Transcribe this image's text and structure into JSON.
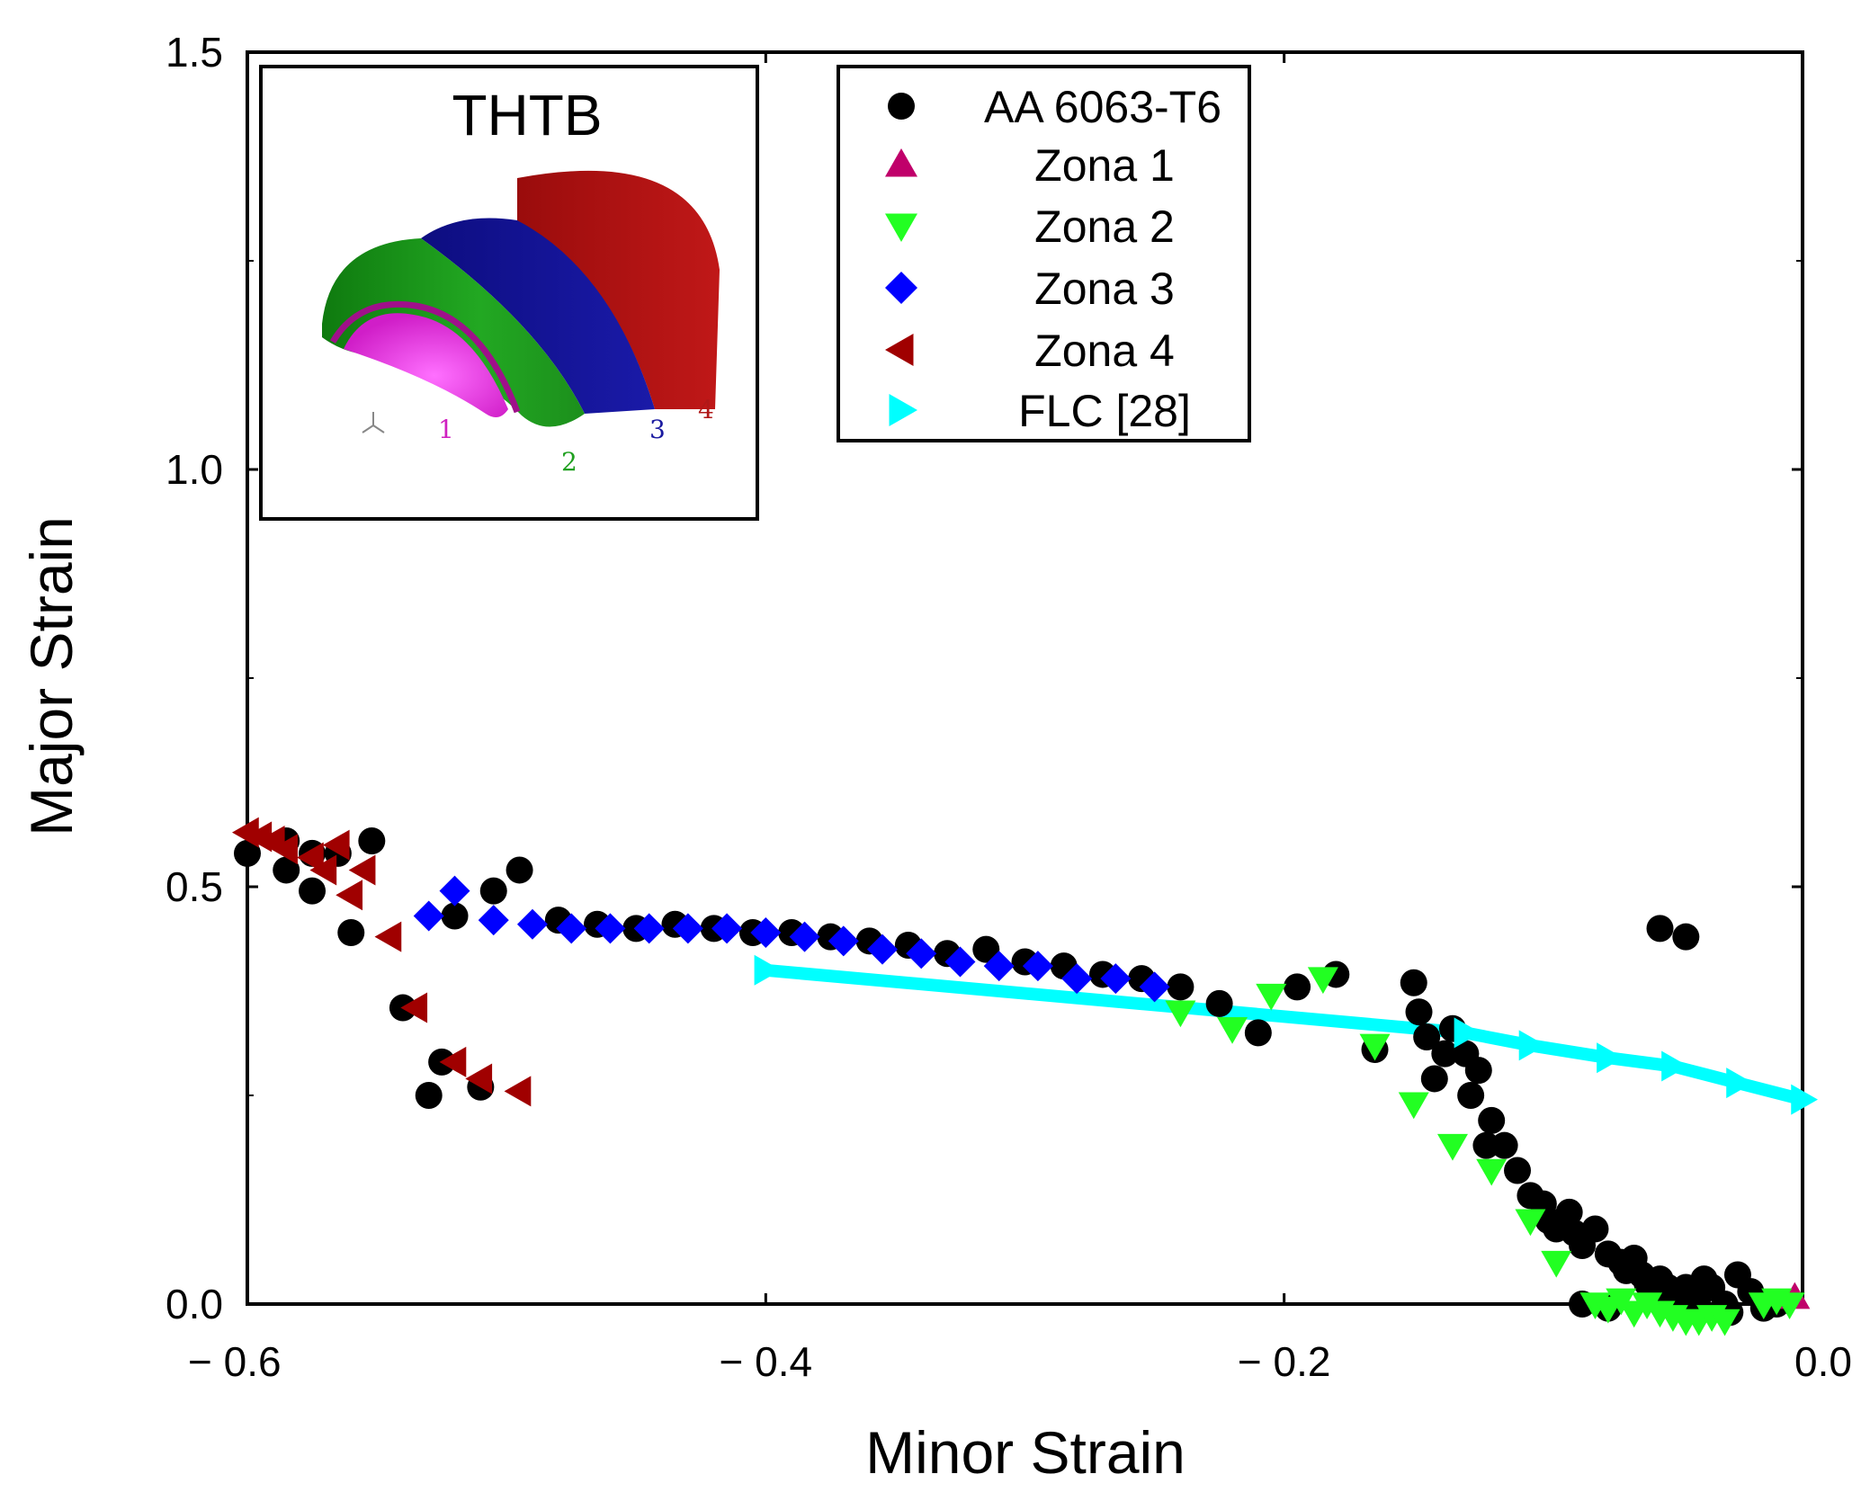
{
  "chart_data": {
    "type": "scatter",
    "title": "",
    "xlabel": "Minor Strain",
    "ylabel": "Major Strain",
    "xlim": [
      -0.6,
      0.0
    ],
    "ylim": [
      0.0,
      1.5
    ],
    "xticks": [
      -0.6,
      -0.4,
      -0.2,
      0.0
    ],
    "xtick_labels": [
      "− 0.6",
      "− 0.4",
      "− 0.2",
      "0.0"
    ],
    "yticks": [
      0.0,
      0.5,
      1.0,
      1.5
    ],
    "ytick_labels": [
      "0.0",
      "0.5",
      "1.0",
      "1.5"
    ],
    "grid": false,
    "legend_position": "top-center",
    "series": [
      {
        "name": "AA 6063-T6",
        "marker": "circle",
        "color": "#000000",
        "points": [
          [
            -0.6,
            0.54
          ],
          [
            -0.585,
            0.555
          ],
          [
            -0.585,
            0.52
          ],
          [
            -0.575,
            0.54
          ],
          [
            -0.575,
            0.495
          ],
          [
            -0.565,
            0.54
          ],
          [
            -0.56,
            0.445
          ],
          [
            -0.552,
            0.555
          ],
          [
            -0.54,
            0.355
          ],
          [
            -0.53,
            0.25
          ],
          [
            -0.525,
            0.29
          ],
          [
            -0.52,
            0.465
          ],
          [
            -0.51,
            0.26
          ],
          [
            -0.505,
            0.495
          ],
          [
            -0.495,
            0.52
          ],
          [
            -0.48,
            0.46
          ],
          [
            -0.465,
            0.455
          ],
          [
            -0.45,
            0.45
          ],
          [
            -0.435,
            0.455
          ],
          [
            -0.42,
            0.45
          ],
          [
            -0.405,
            0.445
          ],
          [
            -0.39,
            0.445
          ],
          [
            -0.375,
            0.44
          ],
          [
            -0.36,
            0.435
          ],
          [
            -0.345,
            0.43
          ],
          [
            -0.33,
            0.42
          ],
          [
            -0.315,
            0.425
          ],
          [
            -0.3,
            0.41
          ],
          [
            -0.285,
            0.405
          ],
          [
            -0.27,
            0.395
          ],
          [
            -0.255,
            0.39
          ],
          [
            -0.24,
            0.38
          ],
          [
            -0.225,
            0.36
          ],
          [
            -0.21,
            0.325
          ],
          [
            -0.195,
            0.38
          ],
          [
            -0.18,
            0.395
          ],
          [
            -0.165,
            0.305
          ],
          [
            -0.15,
            0.385
          ],
          [
            -0.148,
            0.35
          ],
          [
            -0.145,
            0.32
          ],
          [
            -0.142,
            0.27
          ],
          [
            -0.138,
            0.3
          ],
          [
            -0.135,
            0.33
          ],
          [
            -0.13,
            0.3
          ],
          [
            -0.128,
            0.25
          ],
          [
            -0.125,
            0.28
          ],
          [
            -0.122,
            0.19
          ],
          [
            -0.12,
            0.22
          ],
          [
            -0.115,
            0.19
          ],
          [
            -0.11,
            0.16
          ],
          [
            -0.105,
            0.13
          ],
          [
            -0.1,
            0.12
          ],
          [
            -0.098,
            0.1
          ],
          [
            -0.095,
            0.09
          ],
          [
            -0.09,
            0.11
          ],
          [
            -0.088,
            0.085
          ],
          [
            -0.085,
            0.07
          ],
          [
            -0.08,
            0.09
          ],
          [
            -0.075,
            0.06
          ],
          [
            -0.07,
            0.05
          ],
          [
            -0.068,
            0.04
          ],
          [
            -0.065,
            0.055
          ],
          [
            -0.062,
            0.035
          ],
          [
            -0.06,
            0.025
          ],
          [
            -0.058,
            0.015
          ],
          [
            -0.055,
            0.03
          ],
          [
            -0.052,
            0.02
          ],
          [
            -0.05,
            0.01
          ],
          [
            -0.048,
            0.0
          ],
          [
            -0.045,
            0.02
          ],
          [
            -0.042,
            -0.005
          ],
          [
            -0.04,
            0.01
          ],
          [
            -0.038,
            0.03
          ],
          [
            -0.035,
            0.02
          ],
          [
            -0.03,
            0.0
          ],
          [
            -0.028,
            -0.01
          ],
          [
            -0.025,
            0.035
          ],
          [
            -0.02,
            0.015
          ],
          [
            -0.015,
            -0.005
          ],
          [
            -0.01,
            0.0
          ],
          [
            -0.055,
            0.45
          ],
          [
            -0.045,
            0.44
          ],
          [
            -0.085,
            0.0
          ],
          [
            -0.075,
            -0.005
          ]
        ]
      },
      {
        "name": "Zona 1",
        "marker": "triangle-up",
        "color": "#c0006a",
        "points": [
          [
            -0.003,
            0.008
          ]
        ]
      },
      {
        "name": "Zona 2",
        "marker": "triangle-down",
        "color": "#22ff22",
        "points": [
          [
            -0.24,
            0.35
          ],
          [
            -0.22,
            0.33
          ],
          [
            -0.205,
            0.37
          ],
          [
            -0.185,
            0.39
          ],
          [
            -0.165,
            0.31
          ],
          [
            -0.15,
            0.24
          ],
          [
            -0.135,
            0.19
          ],
          [
            -0.12,
            0.16
          ],
          [
            -0.105,
            0.1
          ],
          [
            -0.095,
            0.05
          ],
          [
            -0.08,
            0.0
          ],
          [
            -0.075,
            -0.005
          ],
          [
            -0.07,
            0.005
          ],
          [
            -0.065,
            -0.01
          ],
          [
            -0.06,
            0.0
          ],
          [
            -0.055,
            -0.01
          ],
          [
            -0.05,
            -0.015
          ],
          [
            -0.045,
            -0.02
          ],
          [
            -0.04,
            -0.02
          ],
          [
            -0.035,
            -0.015
          ],
          [
            -0.03,
            -0.02
          ],
          [
            -0.015,
            0.0
          ],
          [
            -0.01,
            0.005
          ],
          [
            -0.005,
            0.0
          ]
        ]
      },
      {
        "name": "Zona 3",
        "marker": "diamond",
        "color": "#0000ff",
        "points": [
          [
            -0.53,
            0.465
          ],
          [
            -0.52,
            0.495
          ],
          [
            -0.505,
            0.46
          ],
          [
            -0.49,
            0.455
          ],
          [
            -0.475,
            0.45
          ],
          [
            -0.46,
            0.45
          ],
          [
            -0.445,
            0.45
          ],
          [
            -0.43,
            0.45
          ],
          [
            -0.415,
            0.45
          ],
          [
            -0.4,
            0.445
          ],
          [
            -0.385,
            0.44
          ],
          [
            -0.37,
            0.435
          ],
          [
            -0.355,
            0.425
          ],
          [
            -0.34,
            0.42
          ],
          [
            -0.325,
            0.41
          ],
          [
            -0.31,
            0.405
          ],
          [
            -0.295,
            0.405
          ],
          [
            -0.28,
            0.39
          ],
          [
            -0.265,
            0.39
          ],
          [
            -0.25,
            0.38
          ]
        ]
      },
      {
        "name": "Zona 4",
        "marker": "triangle-left",
        "color": "#a00000",
        "points": [
          [
            -0.6,
            0.565
          ],
          [
            -0.595,
            0.56
          ],
          [
            -0.59,
            0.555
          ],
          [
            -0.585,
            0.545
          ],
          [
            -0.575,
            0.535
          ],
          [
            -0.57,
            0.52
          ],
          [
            -0.565,
            0.55
          ],
          [
            -0.56,
            0.49
          ],
          [
            -0.555,
            0.52
          ],
          [
            -0.545,
            0.44
          ],
          [
            -0.535,
            0.355
          ],
          [
            -0.52,
            0.29
          ],
          [
            -0.51,
            0.27
          ],
          [
            -0.495,
            0.255
          ]
        ]
      },
      {
        "name": "FLC [28]",
        "marker": "triangle-right",
        "color": "#00ffff",
        "connected": true,
        "points": [
          [
            -0.4,
            0.4
          ],
          [
            -0.13,
            0.325
          ],
          [
            -0.105,
            0.31
          ],
          [
            -0.075,
            0.295
          ],
          [
            -0.05,
            0.285
          ],
          [
            -0.025,
            0.265
          ],
          [
            0.0,
            0.245
          ]
        ]
      }
    ],
    "inset": {
      "title": "THTB",
      "zone_labels": [
        "1",
        "2",
        "3",
        "4"
      ],
      "zone_colors": [
        "#e020c0",
        "#1fa01f",
        "#1a1aa0",
        "#b01818"
      ]
    }
  }
}
